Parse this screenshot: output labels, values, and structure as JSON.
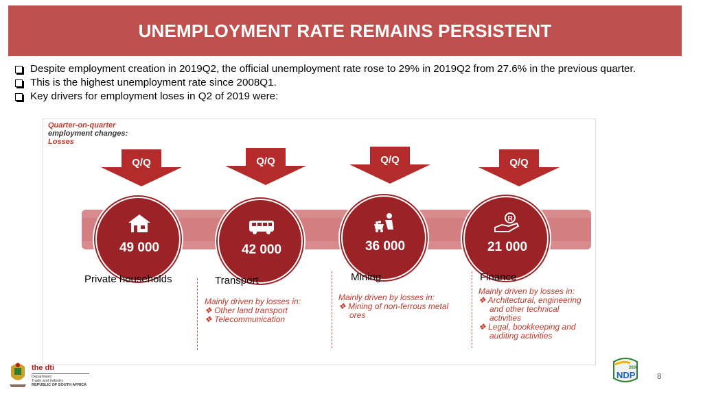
{
  "header": {
    "title": "UNEMPLOYMENT RATE REMAINS PERSISTENT"
  },
  "bullets": [
    "Despite employment creation in 2019Q2, the official unemployment rate rose to 29% in 2019Q2 from 27.6% in the previous quarter.",
    "This is the highest unemployment rate since 2008Q1.",
    "Key drivers for employment loses in Q2 of 2019 were:"
  ],
  "figure": {
    "header_line1": "Quarter-on-quarter",
    "header_line2": "employment changes:",
    "header_line3": "Losses",
    "arrow_label": "Q/Q",
    "sectors": [
      {
        "value": "49 000",
        "label": "Private households",
        "icon": "house-icon",
        "drivers_title": "",
        "drivers": []
      },
      {
        "value": "42 000",
        "label": "Transport",
        "icon": "bus-icon",
        "drivers_title": "Mainly driven by losses in:",
        "drivers": [
          "Other land transport",
          "Telecommunication"
        ]
      },
      {
        "value": "36 000",
        "label": "Mining",
        "icon": "miner-icon",
        "drivers_title": "Mainly driven by losses in:",
        "drivers": [
          "Mining of non-ferrous metal ores"
        ]
      },
      {
        "value": "21 000",
        "label": "Finance",
        "icon": "money-hand-icon",
        "drivers_title": "Mainly driven by losses in:",
        "drivers": [
          "Architectural, engineering and other technical activities",
          "Legal, bookkeeping and auditing activities"
        ]
      }
    ]
  },
  "footer": {
    "dti_brand": "the dti",
    "dti_line1": "Department:",
    "dti_line2": "Trade and Industry",
    "dti_line3": "REPUBLIC OF SOUTH AFRICA",
    "ndp_text": "NDP",
    "ndp_year": "2030",
    "page_number": "8"
  },
  "colors": {
    "title_bar": "#c0504d",
    "circle": "#9b2226",
    "band": "#d98a8c",
    "driver_text": "#c0392b"
  }
}
